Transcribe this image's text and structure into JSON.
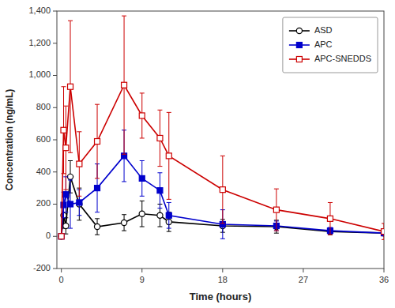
{
  "chart_data": {
    "type": "line",
    "xlabel": "Time (hours)",
    "ylabel": "Concentration (ng/mL)",
    "x": [
      0,
      0.25,
      0.5,
      1,
      2,
      4,
      7,
      9,
      11,
      12,
      18,
      24,
      30,
      36
    ],
    "series": [
      {
        "name": "ASD",
        "color": "#000000",
        "marker": "circle-open",
        "line_style": "solid",
        "values": [
          0,
          130,
          65,
          370,
          200,
          60,
          85,
          140,
          130,
          90,
          65,
          60,
          30,
          20
        ],
        "errors": [
          0,
          80,
          50,
          100,
          100,
          50,
          50,
          80,
          70,
          60,
          40,
          40,
          20,
          15
        ]
      },
      {
        "name": "APC",
        "color": "#0000cc",
        "marker": "square",
        "line_style": "solid",
        "values": [
          0,
          195,
          260,
          200,
          210,
          300,
          500,
          360,
          285,
          130,
          75,
          65,
          35,
          20
        ],
        "errors": [
          0,
          80,
          110,
          150,
          80,
          150,
          160,
          110,
          110,
          80,
          90,
          30,
          20,
          15
        ]
      },
      {
        "name": "APC-SNEDDS",
        "color": "#cc0000",
        "marker": "square-open",
        "line_style": "solid",
        "values": [
          0,
          660,
          550,
          930,
          450,
          590,
          940,
          750,
          610,
          500,
          290,
          165,
          110,
          30
        ],
        "errors": [
          0,
          270,
          260,
          410,
          200,
          230,
          430,
          140,
          175,
          270,
          210,
          130,
          100,
          50
        ]
      }
    ],
    "xlim": [
      -0.5,
      36
    ],
    "xticks": [
      0,
      9,
      18,
      27,
      36
    ],
    "ylim": [
      -200,
      1400
    ],
    "yticks": [
      -200,
      0,
      200,
      400,
      600,
      800,
      {
        "value": 1000,
        "label": "1,000"
      },
      {
        "value": 1200,
        "label": "1,200"
      },
      {
        "value": 1400,
        "label": "1,400"
      }
    ],
    "grid": false,
    "legend": "upper right"
  }
}
